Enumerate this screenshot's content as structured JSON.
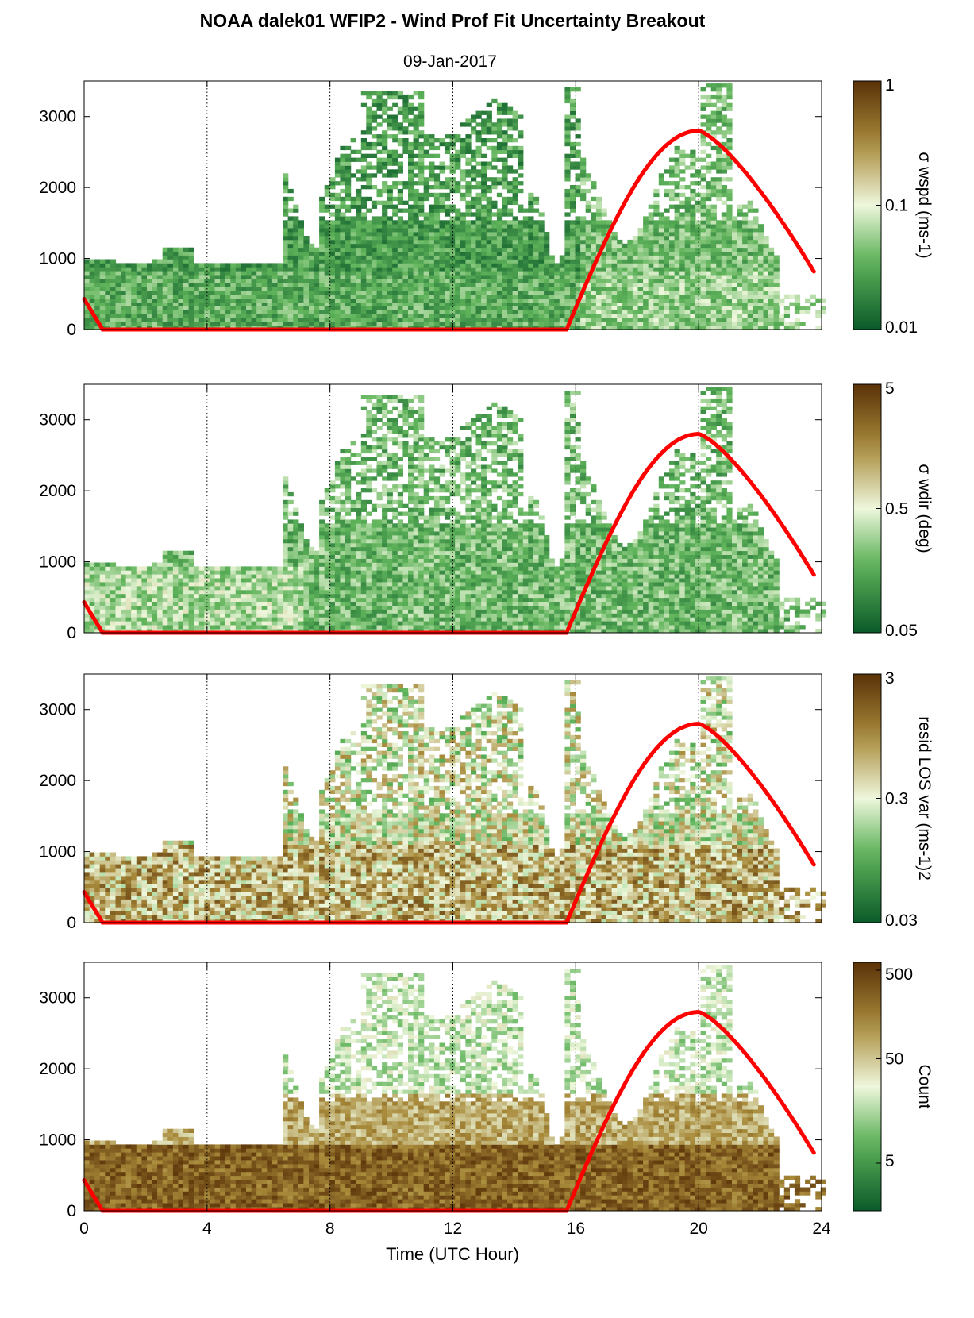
{
  "title": "NOAA dalek01 WFIP2 - Wind Prof Fit Uncertainty Breakout",
  "subtitle": "09-Jan-2017",
  "xlabel": "Time (UTC Hour)",
  "colors": {
    "low": "#0b5a2a",
    "mid_low": "#5fb35a",
    "mid": "#eef7dc",
    "mid_high": "#a88a3a",
    "high": "#5a3208",
    "sun_curve": "#ff0000",
    "frame": "#000000",
    "vline": "#000000"
  },
  "chart_data": [
    {
      "type": "heatmap",
      "panel": 1,
      "colorbar_label": "σ wspd (ms-1)",
      "colorbar_ticks": [
        "1",
        "0.1",
        "0.01"
      ],
      "colorbar_scale": "log",
      "colorbar_range": [
        0.01,
        1
      ],
      "xlim": [
        0,
        24
      ],
      "ylim": [
        0,
        3500
      ],
      "yticks": [
        "0",
        "1000",
        "2000",
        "3000"
      ],
      "xticks": [
        "0",
        "4",
        "8",
        "12",
        "16",
        "20",
        "24"
      ],
      "vertical_dotted_lines": [
        4,
        8,
        12,
        16,
        20,
        24
      ],
      "sun_elevation_curve": {
        "x": [
          0,
          0.6,
          15.7,
          20,
          23.8
        ],
        "y": [
          430,
          0,
          0,
          2800,
          780
        ]
      },
      "grid": false
    },
    {
      "type": "heatmap",
      "panel": 2,
      "colorbar_label": "σ wdir (deg)",
      "colorbar_ticks": [
        "5",
        "0.5",
        "0.05"
      ],
      "colorbar_scale": "log",
      "colorbar_range": [
        0.05,
        5
      ],
      "xlim": [
        0,
        24
      ],
      "ylim": [
        0,
        3500
      ],
      "yticks": [
        "0",
        "1000",
        "2000",
        "3000"
      ],
      "xticks": [
        "0",
        "4",
        "8",
        "12",
        "16",
        "20",
        "24"
      ],
      "vertical_dotted_lines": [
        4,
        8,
        12,
        16,
        20,
        24
      ],
      "sun_elevation_curve": {
        "x": [
          0,
          0.6,
          15.7,
          20,
          23.8
        ],
        "y": [
          430,
          0,
          0,
          2800,
          780
        ]
      },
      "grid": false
    },
    {
      "type": "heatmap",
      "panel": 3,
      "colorbar_label": "resid LOS var (ms-1)2",
      "colorbar_ticks": [
        "3",
        "0.3",
        "0.03"
      ],
      "colorbar_scale": "log",
      "colorbar_range": [
        0.03,
        3
      ],
      "xlim": [
        0,
        24
      ],
      "ylim": [
        0,
        3500
      ],
      "yticks": [
        "0",
        "1000",
        "2000",
        "3000"
      ],
      "xticks": [
        "0",
        "4",
        "8",
        "12",
        "16",
        "20",
        "24"
      ],
      "vertical_dotted_lines": [
        4,
        8,
        12,
        16,
        20,
        24
      ],
      "sun_elevation_curve": {
        "x": [
          0,
          0.6,
          15.7,
          20,
          23.8
        ],
        "y": [
          430,
          0,
          0,
          2800,
          780
        ]
      },
      "grid": false
    },
    {
      "type": "heatmap",
      "panel": 4,
      "colorbar_label": "Count",
      "colorbar_ticks": [
        "500",
        "50",
        "5"
      ],
      "colorbar_scale": "log",
      "colorbar_range": [
        1,
        500
      ],
      "xlim": [
        0,
        24
      ],
      "ylim": [
        0,
        3500
      ],
      "yticks": [
        "0",
        "1000",
        "2000",
        "3000"
      ],
      "xticks": [
        "0",
        "4",
        "8",
        "12",
        "16",
        "20",
        "24"
      ],
      "vertical_dotted_lines": [
        4,
        8,
        12,
        16,
        20,
        24
      ],
      "sun_elevation_curve": {
        "x": [
          0,
          0.6,
          15.7,
          20,
          23.8
        ],
        "y": [
          430,
          0,
          0,
          2800,
          780
        ]
      },
      "grid": false
    }
  ]
}
